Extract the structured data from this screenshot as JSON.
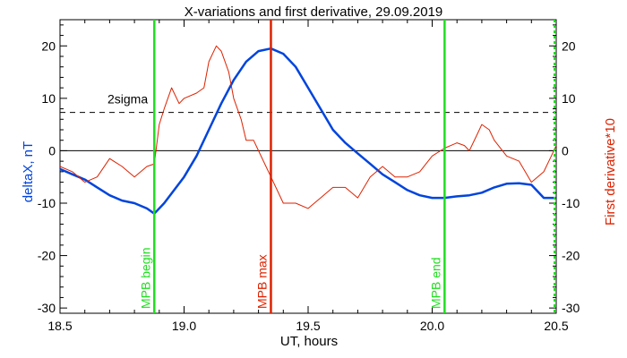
{
  "chart_data": {
    "type": "line",
    "title": "X-variations and first derivative, 29.09.2019",
    "xlabel": "UT, hours",
    "ylabel_left": "deltaX, nT",
    "ylabel_right": "First derivative*10",
    "xlim": [
      18.5,
      20.5
    ],
    "ylim": [
      -31,
      25
    ],
    "x_ticks": [
      "18.5",
      "19.0",
      "19.5",
      "20.0",
      "20.5"
    ],
    "y_ticks": [
      "20",
      "10",
      "0",
      "-10",
      "-20",
      "-30"
    ],
    "threshold": {
      "label": "2sigma",
      "value": 7.3
    },
    "markers": [
      {
        "label": "MPB begin",
        "x": 18.88,
        "color": "#22dd22"
      },
      {
        "label": "MPB max",
        "x": 19.35,
        "color": "#dd2200"
      },
      {
        "label": "MPB end",
        "x": 20.05,
        "color": "#22dd22"
      }
    ],
    "series": [
      {
        "name": "deltaX, nT",
        "color": "#0044dd",
        "x": [
          18.5,
          18.55,
          18.6,
          18.65,
          18.7,
          18.75,
          18.8,
          18.85,
          18.88,
          18.92,
          18.96,
          19.0,
          19.05,
          19.1,
          19.15,
          19.2,
          19.25,
          19.3,
          19.35,
          19.4,
          19.45,
          19.5,
          19.55,
          19.6,
          19.65,
          19.7,
          19.75,
          19.8,
          19.85,
          19.9,
          19.95,
          20.0,
          20.05,
          20.1,
          20.15,
          20.2,
          20.25,
          20.3,
          20.35,
          20.4,
          20.45,
          20.5
        ],
        "y": [
          -3.5,
          -4.5,
          -5.5,
          -7,
          -8.5,
          -9.5,
          -10,
          -11,
          -12,
          -10,
          -7.5,
          -5,
          -1,
          4,
          9,
          13.5,
          17,
          19,
          19.5,
          18.5,
          16,
          12,
          8,
          4,
          1.5,
          -0.5,
          -2.5,
          -4.5,
          -6,
          -7.5,
          -8.5,
          -9,
          -9,
          -8.7,
          -8.5,
          -8,
          -7,
          -6.3,
          -6.2,
          -6.5,
          -9,
          -9
        ]
      },
      {
        "name": "First derivative*10",
        "color": "#dd2200",
        "x": [
          18.5,
          18.55,
          18.6,
          18.65,
          18.7,
          18.75,
          18.8,
          18.85,
          18.88,
          18.9,
          18.92,
          18.95,
          18.98,
          19.0,
          19.05,
          19.08,
          19.1,
          19.13,
          19.15,
          19.18,
          19.2,
          19.23,
          19.25,
          19.28,
          19.3,
          19.35,
          19.4,
          19.42,
          19.45,
          19.5,
          19.55,
          19.6,
          19.65,
          19.7,
          19.75,
          19.8,
          19.85,
          19.9,
          19.95,
          20.0,
          20.05,
          20.1,
          20.13,
          20.15,
          20.18,
          20.2,
          20.23,
          20.25,
          20.3,
          20.35,
          20.4,
          20.45,
          20.48,
          20.5
        ],
        "y": [
          -3,
          -4,
          -6,
          -5,
          -1.5,
          -3,
          -5,
          -3,
          -2.5,
          5,
          8,
          12,
          9,
          10,
          11,
          12,
          17,
          20,
          19,
          15,
          10,
          6,
          2,
          2,
          0,
          -5,
          -10,
          -10,
          -10,
          -11,
          -9,
          -7,
          -7,
          -9,
          -5,
          -3,
          -5,
          -5,
          -4,
          -1,
          0.5,
          1.5,
          1,
          0,
          3,
          5,
          4,
          2,
          -1,
          -2,
          -6,
          -4,
          -1,
          1
        ]
      }
    ],
    "grid": false,
    "legend": "none"
  }
}
